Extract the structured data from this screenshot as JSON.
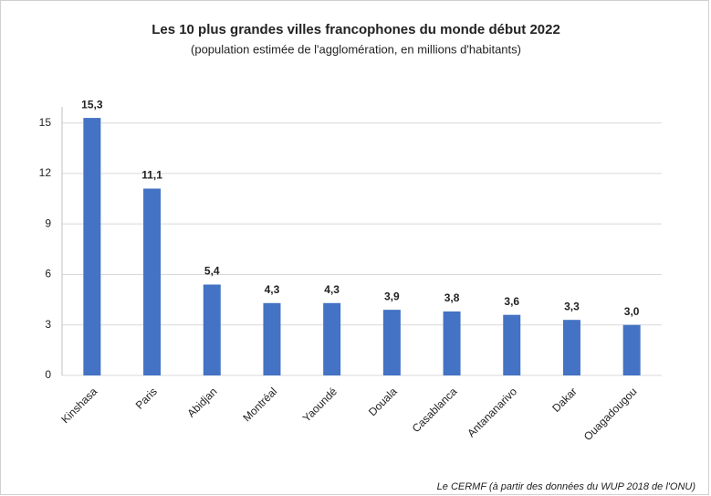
{
  "chart_data": {
    "type": "bar",
    "title": "Les 10 plus grandes villes francophones du monde début 2022",
    "subtitle": "(population estimée de l'agglomération, en millions d'habitants)",
    "source": "Le CERMF (à partir des données du WUP 2018 de l'ONU)",
    "categories": [
      "Kinshasa",
      "Paris",
      "Abidjan",
      "Montréal",
      "Yaoundé",
      "Douala",
      "Casablanca",
      "Antananarivo",
      "Dakar",
      "Ouagadougou"
    ],
    "values": [
      15.3,
      11.1,
      5.4,
      4.3,
      4.3,
      3.9,
      3.8,
      3.6,
      3.3,
      3.0
    ],
    "value_labels": [
      "15,3",
      "11,1",
      "5,4",
      "4,3",
      "4,3",
      "3,9",
      "3,8",
      "3,6",
      "3,3",
      "3,0"
    ],
    "color": "#4472c4",
    "ylim": [
      0,
      16.5
    ],
    "yticks": [
      0,
      3,
      6,
      9,
      12,
      15
    ],
    "grid": true
  }
}
